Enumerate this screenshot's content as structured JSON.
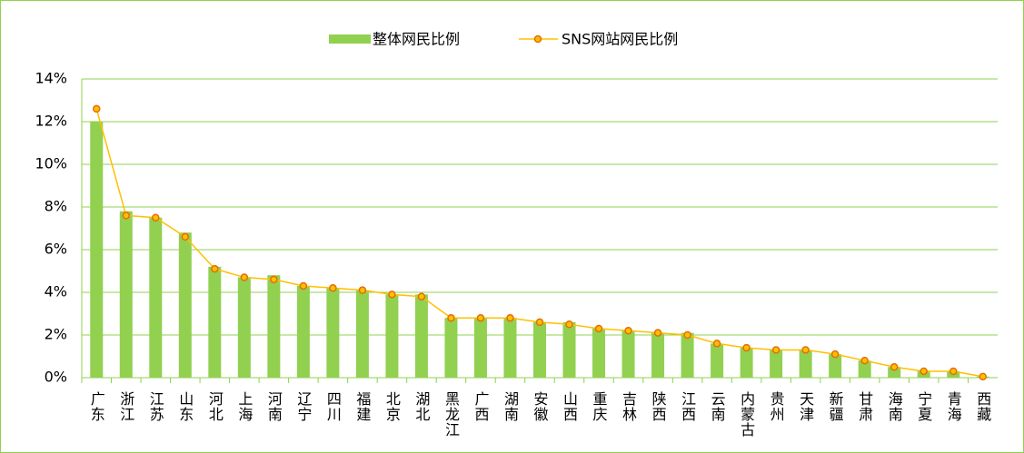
{
  "chart_data": {
    "type": "bar-line",
    "categories": [
      "广东",
      "浙江",
      "江苏",
      "山东",
      "河北",
      "上海",
      "河南",
      "辽宁",
      "四川",
      "福建",
      "北京",
      "湖北",
      "黑龙江",
      "广西",
      "湖南",
      "安徽",
      "山西",
      "重庆",
      "吉林",
      "陕西",
      "江西",
      "云南",
      "内蒙古",
      "贵州",
      "天津",
      "新疆",
      "甘肃",
      "海南",
      "宁夏",
      "青海",
      "西藏"
    ],
    "series": [
      {
        "name": "整体网民比例",
        "color": "#92d050",
        "kind": "bar",
        "values": [
          12.0,
          7.8,
          7.5,
          6.8,
          5.2,
          4.7,
          4.8,
          4.3,
          4.2,
          4.1,
          3.9,
          3.9,
          2.8,
          2.8,
          2.8,
          2.6,
          2.6,
          2.3,
          2.2,
          2.1,
          2.1,
          1.6,
          1.4,
          1.3,
          1.3,
          1.1,
          0.8,
          0.5,
          0.3,
          0.3,
          0.05
        ]
      },
      {
        "name": "SNS网站网民比例",
        "color": "#ffc000",
        "marker_edge": "#e46c0a",
        "kind": "line",
        "values": [
          12.6,
          7.6,
          7.5,
          6.6,
          5.1,
          4.7,
          4.6,
          4.3,
          4.2,
          4.1,
          3.9,
          3.8,
          2.8,
          2.8,
          2.8,
          2.6,
          2.5,
          2.3,
          2.2,
          2.1,
          2.0,
          1.6,
          1.4,
          1.3,
          1.3,
          1.1,
          0.8,
          0.5,
          0.3,
          0.3,
          0.05
        ]
      }
    ],
    "ylim": [
      0,
      14
    ],
    "yticks": [
      {
        "value": 0,
        "label": "0%"
      },
      {
        "value": 2,
        "label": "2%"
      },
      {
        "value": 4,
        "label": "4%"
      },
      {
        "value": 6,
        "label": "6%"
      },
      {
        "value": 8,
        "label": "8%"
      },
      {
        "value": 10,
        "label": "10%"
      },
      {
        "value": 12,
        "label": "12%"
      },
      {
        "value": 14,
        "label": "14%"
      }
    ],
    "grid": true,
    "legend": "top"
  }
}
